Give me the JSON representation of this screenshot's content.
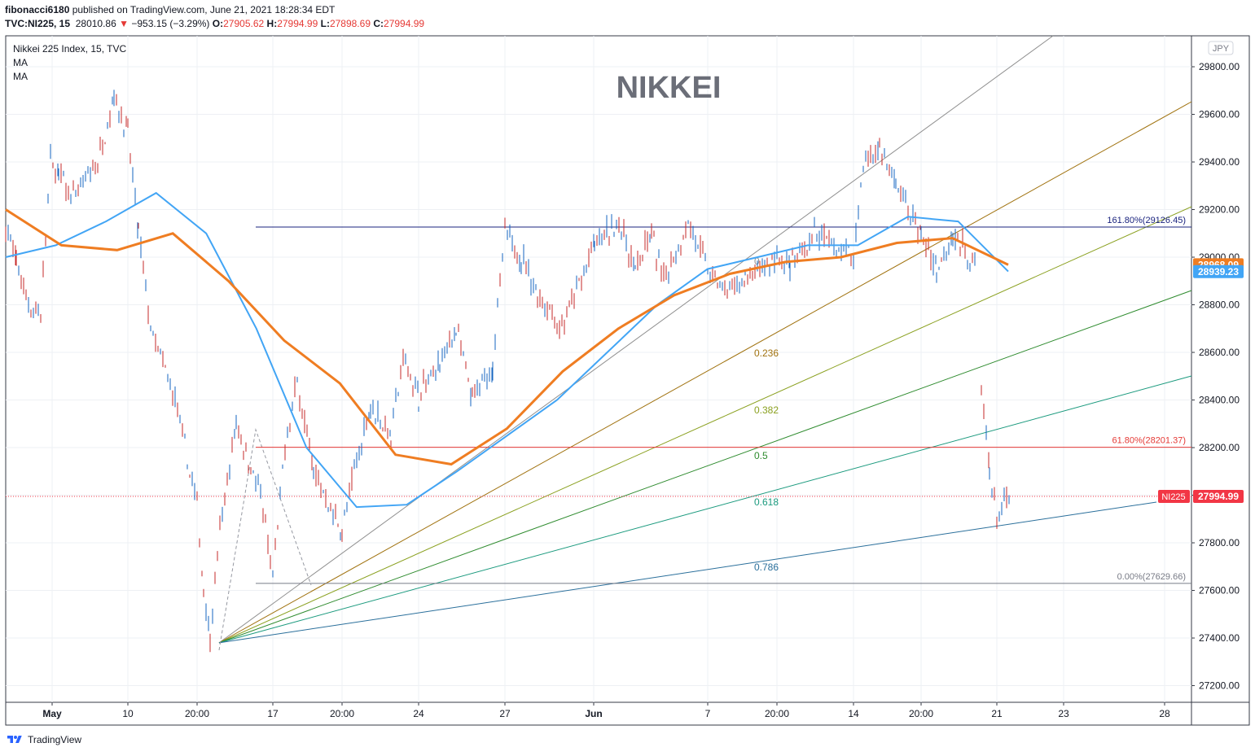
{
  "header": {
    "publisher_line": "fibonacci6180 published on TradingView.com, June 21, 2021 18:28:34 EDT",
    "publisher_name": "fibonacci6180",
    "publisher_rest": " published on TradingView.com, June 21, 2021 18:28:34 EDT",
    "symbol": "TVC:NI225, 15",
    "last": "28010.86",
    "change": "−953.15 (−3.29%)",
    "open_label": "O:",
    "open": "27905.62",
    "high_label": "H:",
    "high": "27994.99",
    "low_label": "L:",
    "low": "27898.69",
    "close_label": "C:",
    "close": "27994.99"
  },
  "legend": {
    "title": "Nikkei 225 Index, 15, TVC",
    "ma1": "MA",
    "ma2": "MA"
  },
  "watermark": "NIKKEI",
  "currency": "JPY",
  "footer": {
    "brand": "TradingView",
    "icon": "tradingview-logo-icon"
  },
  "colors": {
    "ma_fast": "#42a5f5",
    "ma_slow": "#ef7d22",
    "candle": "#1565c0",
    "candle_down": "#c62828",
    "price_label": "#f23645",
    "fib_161": "#1a237e",
    "fib_618": "#e53935"
  },
  "chart_data": {
    "type": "line",
    "title": "Nikkei 225 Index, 15, TVC",
    "xlabel": "",
    "ylabel": "",
    "ylim": [
      27130,
      29930
    ],
    "x_ticks": [
      "May",
      "10",
      "20:00",
      "17",
      "20:00",
      "24",
      "27",
      "Jun",
      "7",
      "20:00",
      "14",
      "20:00",
      "21",
      "23",
      "28"
    ],
    "y_ticks": [
      27200,
      27400,
      27600,
      27800,
      28000,
      28200,
      28400,
      28600,
      28800,
      29000,
      29200,
      29400,
      29600,
      29800
    ],
    "y_tick_labels": [
      "27200.00",
      "27400.00",
      "27600.00",
      "27800.00",
      "28000.00",
      "28200.00",
      "28400.00",
      "28600.00",
      "28800.00",
      "29000.00",
      "29200.00",
      "29400.00",
      "29600.00",
      "29800.00"
    ],
    "grid": true,
    "price_series": {
      "name": "NI225",
      "close_points": [
        [
          "May",
          29130
        ],
        [
          "",
          28980
        ],
        [
          "",
          28800
        ],
        [
          "",
          28760
        ],
        [
          "",
          29400
        ],
        [
          "",
          29350
        ],
        [
          "",
          29250
        ],
        [
          "",
          29400
        ],
        [
          "10",
          29680
        ],
        [
          "",
          29520
        ],
        [
          "",
          29100
        ],
        [
          "",
          28700
        ],
        [
          "",
          28550
        ],
        [
          "",
          28400
        ],
        [
          "20:00",
          27950
        ],
        [
          "",
          27600
        ],
        [
          "",
          27400
        ],
        [
          "",
          27850
        ],
        [
          "",
          28300
        ],
        [
          "17",
          28000
        ],
        [
          "",
          27650
        ],
        [
          "",
          28200
        ],
        [
          "",
          28480
        ],
        [
          "20:00",
          28100
        ],
        [
          "",
          27850
        ],
        [
          "",
          28100
        ],
        [
          "",
          28380
        ],
        [
          "",
          28250
        ],
        [
          "24",
          28580
        ],
        [
          "",
          28420
        ],
        [
          "",
          28550
        ],
        [
          "",
          28700
        ],
        [
          "",
          28400
        ],
        [
          "27",
          28550
        ],
        [
          "",
          29100
        ],
        [
          "",
          29000
        ],
        [
          "",
          28850
        ],
        [
          "Jun",
          28700
        ],
        [
          "",
          29050
        ],
        [
          "",
          29150
        ],
        [
          "",
          28950
        ],
        [
          "",
          29100
        ],
        [
          "",
          28900
        ],
        [
          "",
          29150
        ],
        [
          "7",
          28950
        ],
        [
          "",
          28850
        ],
        [
          "",
          28900
        ],
        [
          "20:00",
          29000
        ],
        [
          "",
          28950
        ],
        [
          "",
          29100
        ],
        [
          "14",
          29000
        ],
        [
          "",
          29400
        ],
        [
          "",
          29460
        ],
        [
          "",
          29300
        ],
        [
          "20:00",
          29100
        ],
        [
          "",
          28950
        ],
        [
          "",
          29100
        ],
        [
          "",
          28950
        ],
        [
          "",
          28450
        ],
        [
          "",
          28100
        ],
        [
          "21",
          27900
        ],
        [
          "",
          27995
        ]
      ]
    },
    "series": [
      {
        "name": "MA",
        "color": "#42a5f5",
        "values": [
          29000,
          29050,
          29150,
          29270,
          29100,
          28700,
          28200,
          27950,
          27960,
          28100,
          28250,
          28400,
          28600,
          28800,
          28950,
          29000,
          29050,
          29050,
          29170,
          29150,
          28940
        ]
      },
      {
        "name": "MA",
        "color": "#ef7d22",
        "values": [
          29200,
          29050,
          29030,
          29100,
          28900,
          28650,
          28470,
          28170,
          28130,
          28280,
          28520,
          28700,
          28840,
          28930,
          28980,
          29000,
          29060,
          29080,
          28968
        ]
      }
    ],
    "fibonacci_levels": [
      {
        "label": "161.80%(29126.45)",
        "value": 29126.45
      },
      {
        "label": "61.80%(28201.37)",
        "value": 28201.37
      },
      {
        "label": "0.00%(27629.66)",
        "value": 27629.66
      }
    ],
    "fib_fan": {
      "origin": [
        "20:00",
        27380
      ],
      "labels": [
        "0",
        "0.236",
        "0.382",
        "0.5",
        "0.618",
        "0.786"
      ]
    },
    "price_labels": [
      {
        "name": "NI225",
        "value": "27994.99"
      },
      {
        "name": "MA",
        "value": "28968.09"
      },
      {
        "name": "MA",
        "value": "28939.23"
      }
    ]
  }
}
